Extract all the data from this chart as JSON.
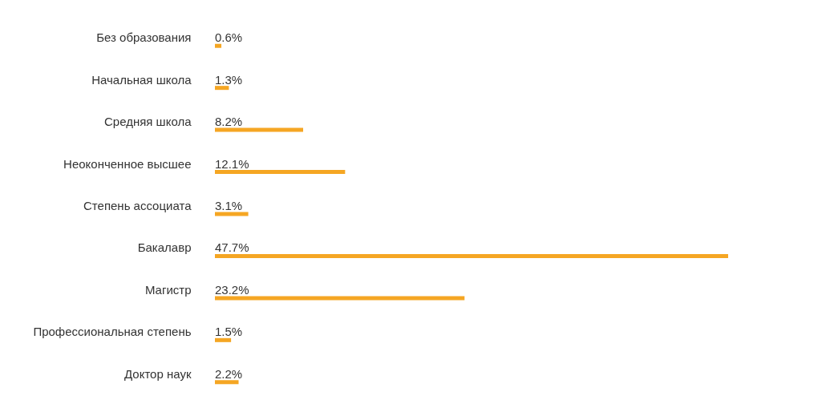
{
  "chart_data": {
    "type": "bar",
    "orientation": "horizontal",
    "categories": [
      "Без образования",
      "Начальная школа",
      "Средняя школа",
      "Неоконченное высшее",
      "Степень ассоциата",
      "Бакалавр",
      "Магистр",
      "Профессиональная степень",
      "Доктор наук"
    ],
    "values": [
      0.6,
      1.3,
      8.2,
      12.1,
      3.1,
      47.7,
      23.2,
      1.5,
      2.2
    ],
    "value_labels": [
      "0.6%",
      "1.3%",
      "8.2%",
      "12.1%",
      "3.1%",
      "47.7%",
      "23.2%",
      "1.5%",
      "2.2%"
    ],
    "color": "#f5a623",
    "grid": false
  }
}
